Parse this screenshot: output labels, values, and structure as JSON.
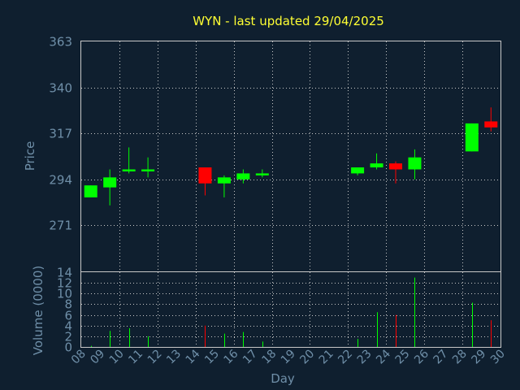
{
  "chart_data": [
    {
      "type": "candlestick",
      "title": "WYN - last updated 29/04/2025",
      "ylabel": "Price",
      "yticks": [
        "363",
        "340",
        "317",
        "294",
        "271"
      ],
      "ylim": [
        248,
        363
      ],
      "grid": true,
      "colors": {
        "up": "#00ff00",
        "down": "#ff0000",
        "background": "#0f1f2f",
        "grid": "#c8c8c8",
        "text": "#6f8fa8",
        "title": "#ffff33"
      },
      "candles": [
        {
          "x": 8,
          "open": 285,
          "high": 291,
          "low": 285,
          "close": 291
        },
        {
          "x": 9,
          "open": 290,
          "high": 299,
          "low": 281,
          "close": 295
        },
        {
          "x": 10,
          "open": 298,
          "high": 310,
          "low": 297,
          "close": 299
        },
        {
          "x": 11,
          "open": 298,
          "high": 305,
          "low": 295,
          "close": 299
        },
        {
          "x": 14,
          "open": 300,
          "high": 300,
          "low": 286,
          "close": 292
        },
        {
          "x": 15,
          "open": 292,
          "high": 296,
          "low": 285,
          "close": 295
        },
        {
          "x": 16,
          "open": 294,
          "high": 299,
          "low": 292,
          "close": 297
        },
        {
          "x": 17,
          "open": 296,
          "high": 299,
          "low": 295,
          "close": 297
        },
        {
          "x": 22,
          "open": 297,
          "high": 300,
          "low": 296,
          "close": 300
        },
        {
          "x": 23,
          "open": 300,
          "high": 307,
          "low": 299,
          "close": 302
        },
        {
          "x": 24,
          "open": 302,
          "high": 303,
          "low": 292,
          "close": 299
        },
        {
          "x": 25,
          "open": 299,
          "high": 309,
          "low": 294,
          "close": 305
        },
        {
          "x": 28,
          "open": 308,
          "high": 322,
          "low": 308,
          "close": 322
        },
        {
          "x": 29,
          "open": 323,
          "high": 330,
          "low": 318,
          "close": 320
        }
      ]
    },
    {
      "type": "bar",
      "ylabel": "Volume (0000)",
      "yticks": [
        "14",
        "12",
        "10",
        "8",
        "6",
        "4",
        "2",
        "0"
      ],
      "ylim": [
        0,
        14
      ],
      "xlabel": "Day",
      "categories": [
        "08",
        "09",
        "10",
        "11",
        "12",
        "13",
        "14",
        "15",
        "16",
        "17",
        "18",
        "19",
        "20",
        "21",
        "22",
        "23",
        "24",
        "25",
        "26",
        "27",
        "28",
        "29",
        "30"
      ],
      "bars": [
        {
          "x": 8,
          "value": 0.2,
          "up": true
        },
        {
          "x": 9,
          "value": 3.0,
          "up": true
        },
        {
          "x": 10,
          "value": 3.5,
          "up": true
        },
        {
          "x": 11,
          "value": 2.0,
          "up": true
        },
        {
          "x": 14,
          "value": 4.0,
          "up": false
        },
        {
          "x": 15,
          "value": 2.5,
          "up": true
        },
        {
          "x": 16,
          "value": 2.8,
          "up": true
        },
        {
          "x": 17,
          "value": 1.0,
          "up": true
        },
        {
          "x": 22,
          "value": 1.5,
          "up": true
        },
        {
          "x": 23,
          "value": 6.5,
          "up": true
        },
        {
          "x": 24,
          "value": 6.0,
          "up": false
        },
        {
          "x": 25,
          "value": 13.0,
          "up": true
        },
        {
          "x": 28,
          "value": 8.3,
          "up": true
        },
        {
          "x": 29,
          "value": 5.0,
          "up": false
        }
      ]
    }
  ]
}
